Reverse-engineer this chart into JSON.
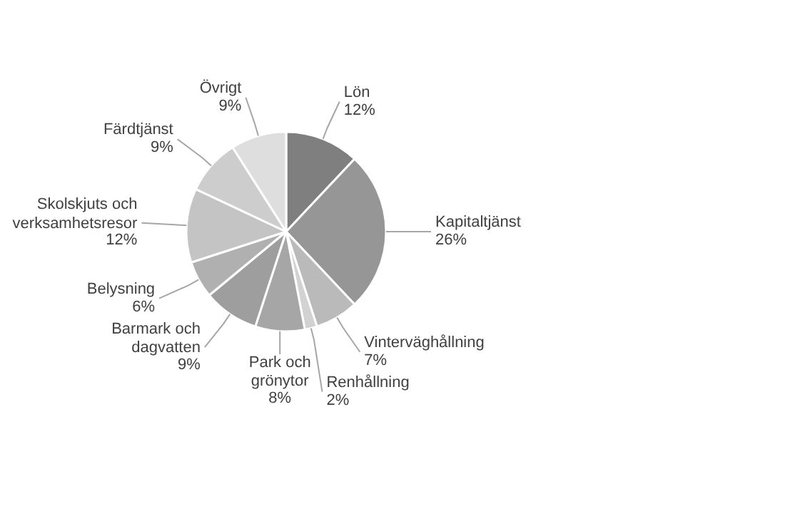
{
  "chart_data": {
    "type": "pie",
    "categories": [
      "Lön",
      "Kapitaltjänst",
      "Vinterväghållning",
      "Renhållning",
      "Park och grönytor",
      "Barmark och dagvatten",
      "Belysning",
      "Skolskjuts och verksamhetsresor",
      "Färdtjänst",
      "Övrigt"
    ],
    "values": [
      12,
      26,
      7,
      2,
      8,
      9,
      6,
      12,
      9,
      9
    ],
    "colors": [
      "#7f7f7f",
      "#969696",
      "#bababa",
      "#d2d2d2",
      "#a6a6a6",
      "#9e9e9e",
      "#b0b0b0",
      "#c4c4c4",
      "#cdcdcd",
      "#dedede"
    ],
    "value_labels": [
      "12%",
      "26%",
      "7%",
      "2%",
      "8%",
      "9%",
      "6%",
      "12%",
      "9%",
      "9%"
    ]
  }
}
